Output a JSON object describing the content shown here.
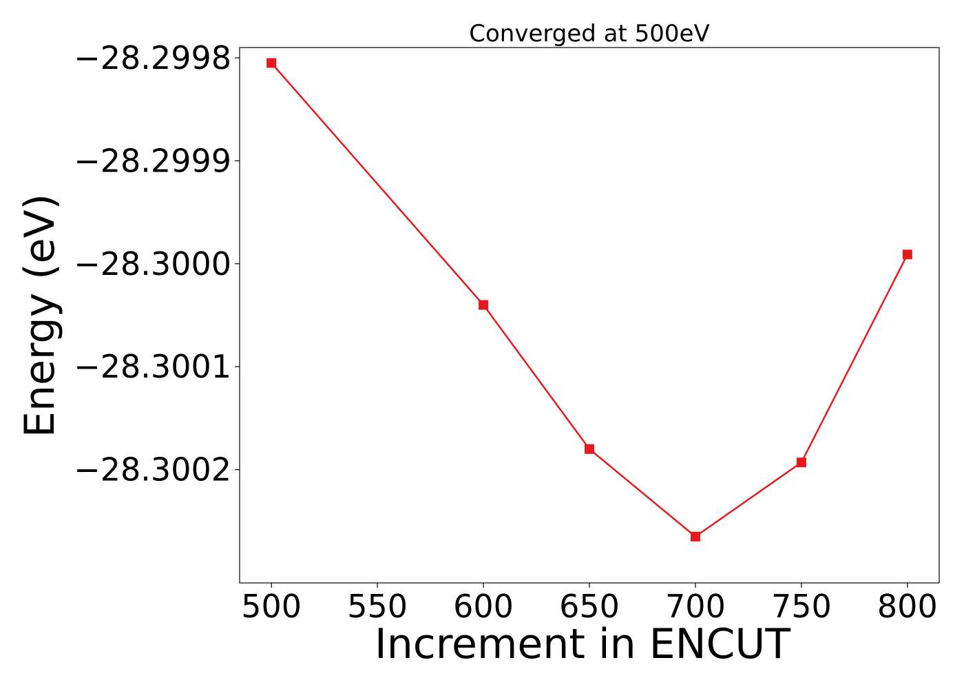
{
  "chart_data": {
    "type": "line",
    "title": "Converged at 500eV",
    "xlabel": "Increment in ENCUT",
    "ylabel": "Energy (eV)",
    "x": [
      500,
      600,
      650,
      700,
      750,
      800
    ],
    "series": [
      {
        "values": [
          -28.299805,
          -28.30004,
          -28.30018,
          -28.300265,
          -28.300193,
          -28.299991
        ],
        "color": "#e41a1c",
        "marker": "square"
      }
    ],
    "xticks": [
      500,
      550,
      600,
      650,
      700,
      750,
      800
    ],
    "xtick_labels": [
      "500",
      "550",
      "600",
      "650",
      "700",
      "750",
      "800"
    ],
    "yticks": [
      -28.2998,
      -28.2999,
      -28.3,
      -28.3001,
      -28.3002
    ],
    "ytick_labels": [
      "−28.2998",
      "−28.2999",
      "−28.3000",
      "−28.3001",
      "−28.3002"
    ],
    "xlim": [
      485,
      815
    ],
    "ylim": [
      -28.30031,
      -28.29979
    ],
    "grid": false,
    "legend": "none"
  }
}
